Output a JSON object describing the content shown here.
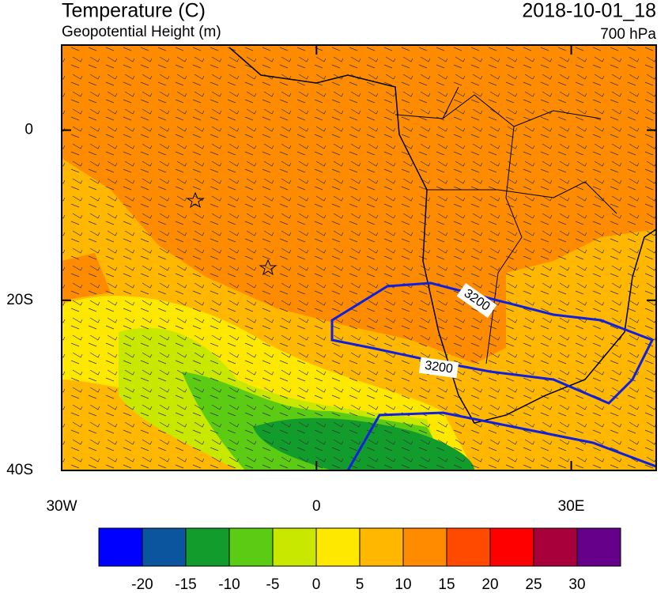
{
  "map": {
    "title": "Temperature (C)",
    "subtitle": "Geopotential Height (m)",
    "valid_time": "2018-10-01_18",
    "level": "700 hPa",
    "xlim": [
      -30,
      40
    ],
    "ylim": [
      -40,
      10
    ],
    "xticks": [
      {
        "value": -30,
        "label": "30W"
      },
      0,
      {
        "value": 30,
        "label": "30E"
      }
    ],
    "yticks": [
      0,
      {
        "value": -20,
        "label": "20S"
      },
      {
        "value": -40,
        "label": "40S"
      }
    ],
    "contour_labels": [
      "3200",
      "3200"
    ]
  },
  "colorbar": {
    "levels": [
      -20,
      -15,
      -10,
      -5,
      0,
      5,
      10,
      15,
      20,
      25,
      30
    ],
    "colors": [
      "#0000ff",
      "#0a559e",
      "#129c2c",
      "#5ccb14",
      "#c8e800",
      "#ffe800",
      "#ffb700",
      "#ff8c00",
      "#ff4a00",
      "#ff0000",
      "#a8003a",
      "#66008a"
    ]
  }
}
